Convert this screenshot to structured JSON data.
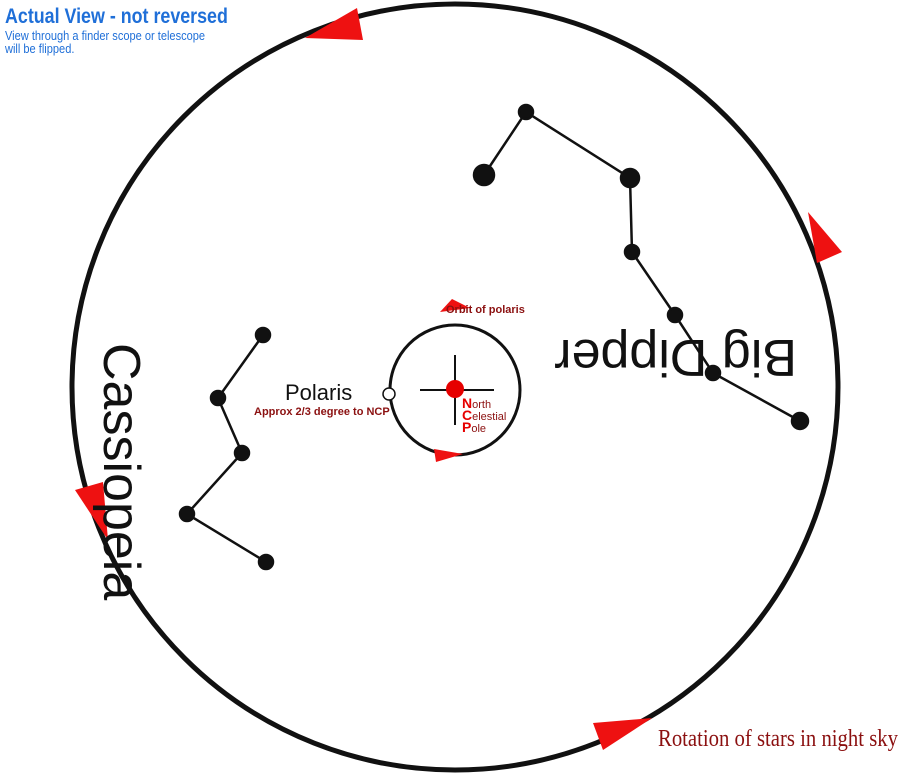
{
  "header": {
    "title": "Actual View - not reversed",
    "note_line1": "View through a finder scope or telescope",
    "note_line2": "will be flipped."
  },
  "labels": {
    "big_dipper": "Big Dipper",
    "cassiopeia": "Cassiopeia",
    "polaris": "Polaris",
    "orbit": "Orbit of polaris",
    "approx": "Approx 2/3 degree to NCP",
    "ncp_initials": [
      "N",
      "C",
      "P"
    ],
    "ncp_rest": [
      "orth",
      "elestial",
      "ole"
    ],
    "rotation": "Rotation of stars in night sky"
  },
  "colors": {
    "title_blue": "#1f6fd8",
    "arrow_red": "#ee1111",
    "label_dark_red": "#8b1010",
    "ncp_red": "#e60000",
    "ink": "#111111"
  }
}
